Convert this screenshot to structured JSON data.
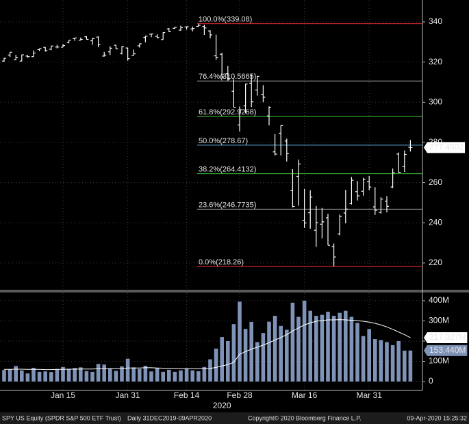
{
  "chart_data": [
    {
      "type": "ohlc",
      "categories": [
        null,
        null,
        null,
        null,
        null,
        null,
        null,
        null,
        null,
        null,
        "Jan 15",
        null,
        null,
        null,
        null,
        null,
        null,
        null,
        null,
        null,
        null,
        "Jan 31",
        null,
        null,
        null,
        null,
        null,
        null,
        null,
        null,
        null,
        "Feb 14",
        null,
        null,
        null,
        null,
        null,
        null,
        null,
        null,
        "Feb 28",
        null,
        null,
        null,
        null,
        null,
        null,
        null,
        null,
        null,
        null,
        "Mar 16",
        null,
        null,
        null,
        null,
        null,
        null,
        null,
        null,
        null,
        null,
        "Mar 31",
        null,
        null,
        null,
        null,
        null,
        null,
        null
      ],
      "year_label": "2020",
      "color": "#ffffff",
      "open": [
        320.5,
        323.5,
        321.2,
        320.5,
        323.0,
        322.7,
        326.2,
        327.3,
        326.4,
        327.5,
        327.4,
        329.7,
        331.7,
        330.9,
        332.6,
        330.6,
        332.4,
        323.0,
        325.1,
        328.4,
        324.4,
        327.0,
        323.4,
        328.1,
        332.3,
        333.9,
        332.8,
        331.2,
        336.5,
        336.8,
        335.9,
        337.5,
        336.5,
        337.8,
        337.7,
        335.5,
        323.1,
        323.9,
        314.2,
        305.5,
        288.7,
        298.2,
        309.5,
        306.1,
        304.0,
        293.2,
        275.3,
        284.6,
        280.7,
        256.0,
        263.1,
        241.2,
        245.0,
        236.3,
        239.3,
        242.5,
        228.2,
        234.4,
        244.9,
        249.5,
        255.5,
        255.7,
        260.6,
        247.9,
        245.2,
        250.8,
        257.8,
        274.2,
        268.0,
        277.6
      ],
      "high": [
        322.1,
        324.9,
        323.6,
        323.7,
        323.5,
        325.8,
        326.7,
        327.5,
        328.0,
        328.6,
        329.0,
        330.9,
        332.0,
        332.2,
        332.9,
        332.0,
        332.9,
        325.1,
        327.9,
        328.6,
        327.9,
        327.2,
        326.2,
        329.2,
        333.1,
        334.2,
        333.9,
        334.8,
        337.0,
        337.6,
        338.1,
        337.7,
        337.7,
        339.1,
        338.6,
        335.8,
        333.6,
        324.6,
        318.1,
        311.6,
        297.9,
        309.2,
        313.8,
        313.1,
        308.5,
        298.0,
        284.2,
        288.5,
        281.9,
        266.7,
        271.5,
        256.9,
        256.2,
        248.4,
        247.4,
        244.5,
        229.7,
        244.1,
        256.4,
        262.8,
        260.8,
        262.4,
        263.3,
        257.7,
        252.7,
        253.3,
        267.0,
        275.0,
        276.0,
        281.2
      ],
      "low": [
        320.2,
        322.5,
        321.1,
        320.4,
        322.2,
        322.7,
        325.5,
        325.2,
        325.9,
        326.8,
        327.3,
        329.3,
        330.6,
        330.8,
        331.2,
        328.6,
        327.4,
        322.7,
        323.5,
        326.4,
        323.8,
        320.7,
        323.2,
        327.2,
        329.9,
        332.4,
        331.8,
        331.2,
        334.9,
        336.6,
        335.6,
        336.2,
        335.3,
        337.5,
        333.5,
        331.8,
        321.1,
        311.7,
        310.7,
        297.5,
        285.5,
        294.5,
        297.6,
        303.3,
        300.0,
        288.5,
        273.5,
        273.5,
        270.5,
        247.7,
        248.5,
        237.4,
        237.1,
        228.0,
        232.2,
        228.8,
        218.3,
        233.8,
        239.7,
        249.1,
        251.1,
        253.5,
        256.2,
        243.9,
        244.6,
        245.2,
        257.3,
        264.9,
        265.3,
        275.5
      ],
      "close": [
        321.9,
        324.9,
        322.4,
        323.6,
        322.7,
        324.5,
        326.7,
        325.7,
        328.0,
        327.5,
        328.2,
        330.9,
        332.0,
        331.3,
        331.3,
        331.7,
        328.8,
        323.5,
        326.9,
        326.6,
        327.7,
        321.7,
        324.1,
        329.1,
        332.9,
        334.0,
        332.2,
        334.7,
        335.3,
        337.4,
        337.1,
        337.6,
        336.7,
        338.3,
        337.0,
        333.5,
        322.4,
        312.7,
        311.5,
        297.5,
        296.3,
        309.1,
        300.2,
        312.9,
        302.5,
        297.5,
        274.2,
        288.4,
        274.4,
        248.1,
        269.3,
        239.9,
        252.8,
        240.0,
        240.5,
        228.8,
        223.0,
        243.2,
        246.8,
        261.2,
        253.4,
        261.7,
        257.8,
        246.2,
        251.8,
        248.2,
        264.9,
        265.1,
        274.0,
        277.4502
      ],
      "levels": [
        {
          "value": 339.08,
          "label": "100.0%(339.08)",
          "color": "#ff2b2b"
        },
        {
          "value": 310.5665,
          "label": "76.4%(310.5665)",
          "color": "#a8a8a8"
        },
        {
          "value": 292.9268,
          "label": "61.8%(292.9268)",
          "color": "#3ccf3c"
        },
        {
          "value": 278.67,
          "label": "50.0%(278.67)",
          "color": "#5aaee0"
        },
        {
          "value": 264.4132,
          "label": "38.2%(264.4132)",
          "color": "#3ccf3c"
        },
        {
          "value": 246.7735,
          "label": "23.6%(246.7735)",
          "color": "#a8a8a8"
        },
        {
          "value": 218.26,
          "label": "0.0%(218.26)",
          "color": "#ff2b2b"
        }
      ],
      "ylim": [
        207.7,
        350.9
      ],
      "yticks": [
        220,
        240,
        260,
        280,
        300,
        320,
        340
      ],
      "grid": true
    },
    {
      "type": "bar",
      "series": [
        {
          "color": "#7f93b8",
          "values": [
            57,
            59,
            77,
            55,
            40,
            68,
            48,
            50,
            47,
            62,
            72,
            63,
            67,
            70,
            52,
            48,
            87,
            84,
            63,
            53,
            75,
            113,
            70,
            62,
            78,
            50,
            66,
            48,
            58,
            48,
            55,
            65,
            55,
            51,
            72,
            110,
            163,
            220,
            200,
            284,
            395,
            260,
            295,
            195,
            240,
            296,
            325,
            275,
            256,
            390,
            320,
            400,
            350,
            325,
            330,
            345,
            325,
            340,
            350,
            320,
            290,
            225,
            260,
            210,
            205,
            195,
            180,
            200,
            153,
            153.44
          ],
          "last_value_label": "153.440M"
        },
        {
          "type": "line",
          "color": "#ffffff",
          "values": [
            60,
            60,
            61,
            61,
            60,
            60,
            60,
            59,
            59,
            60,
            60,
            61,
            61,
            62,
            62,
            62,
            63,
            64,
            64,
            64,
            65,
            67,
            67,
            67,
            68,
            68,
            67,
            66,
            66,
            65,
            64,
            64,
            63,
            63,
            63,
            65,
            70,
            77,
            84,
            95,
            135,
            148,
            160,
            170,
            180,
            192,
            205,
            218,
            232,
            250,
            265,
            280,
            290,
            298,
            302,
            305,
            305,
            306,
            305,
            303,
            301,
            298,
            294,
            288,
            280,
            270,
            258,
            245,
            232,
            217.027
          ],
          "last_value_label": "217.027M"
        }
      ],
      "ylim": [
        -44,
        437
      ],
      "yticks": [
        0,
        {
          "value": 100,
          "label": "100M"
        },
        {
          "value": 200,
          "label": "200M"
        },
        {
          "value": 300,
          "label": "300M"
        },
        {
          "value": 400,
          "label": "400M"
        }
      ],
      "grid": true
    }
  ],
  "footer": {
    "security": "SPY US Equity (SPDR S&P 500 ETF Trust)",
    "range": "Daily 31DEC2019-09APR2020",
    "copyright": "Copyright© 2020 Bloomberg Finance L.P.",
    "timestamp": "09-Apr-2020 15:25:32"
  }
}
